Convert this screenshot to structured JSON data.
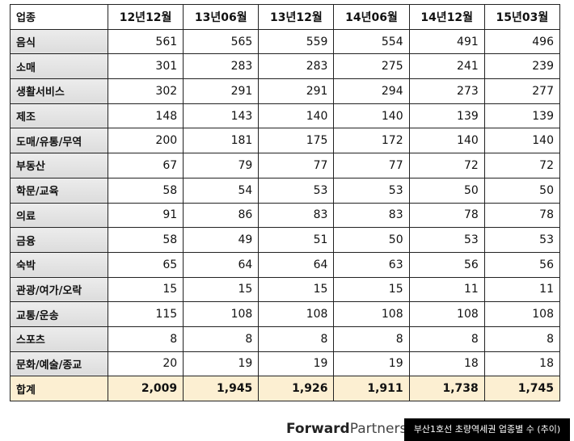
{
  "table": {
    "header": [
      "업종",
      "12년12월",
      "13년06월",
      "13년12월",
      "14년06월",
      "14년12월",
      "15년03월"
    ],
    "rows": [
      [
        "음식",
        561,
        565,
        559,
        554,
        491,
        496
      ],
      [
        "소매",
        301,
        283,
        283,
        275,
        241,
        239
      ],
      [
        "생활서비스",
        302,
        291,
        291,
        294,
        273,
        277
      ],
      [
        "제조",
        148,
        143,
        140,
        140,
        139,
        139
      ],
      [
        "도매/유통/무역",
        200,
        181,
        175,
        172,
        140,
        140
      ],
      [
        "부동산",
        67,
        79,
        77,
        77,
        72,
        72
      ],
      [
        "학문/교육",
        58,
        54,
        53,
        53,
        50,
        50
      ],
      [
        "의료",
        91,
        86,
        83,
        83,
        78,
        78
      ],
      [
        "금융",
        58,
        49,
        51,
        50,
        53,
        53
      ],
      [
        "숙박",
        65,
        64,
        64,
        63,
        56,
        56
      ],
      [
        "관광/여가/오락",
        15,
        15,
        15,
        15,
        11,
        11
      ],
      [
        "교통/운송",
        115,
        108,
        108,
        108,
        108,
        108
      ],
      [
        "스포츠",
        8,
        8,
        8,
        8,
        8,
        8
      ],
      [
        "문화/예술/종교",
        20,
        19,
        19,
        19,
        18,
        18
      ]
    ],
    "total": [
      "합계",
      "2,009",
      "1,945",
      "1,926",
      "1,911",
      "1,738",
      "1,745"
    ]
  },
  "footer": {
    "brand_bold": "Forward",
    "brand_light": "Partners",
    "brand_mark": "®",
    "caption": "부산1호선 초량역세권 업종별 수 (추이)"
  }
}
